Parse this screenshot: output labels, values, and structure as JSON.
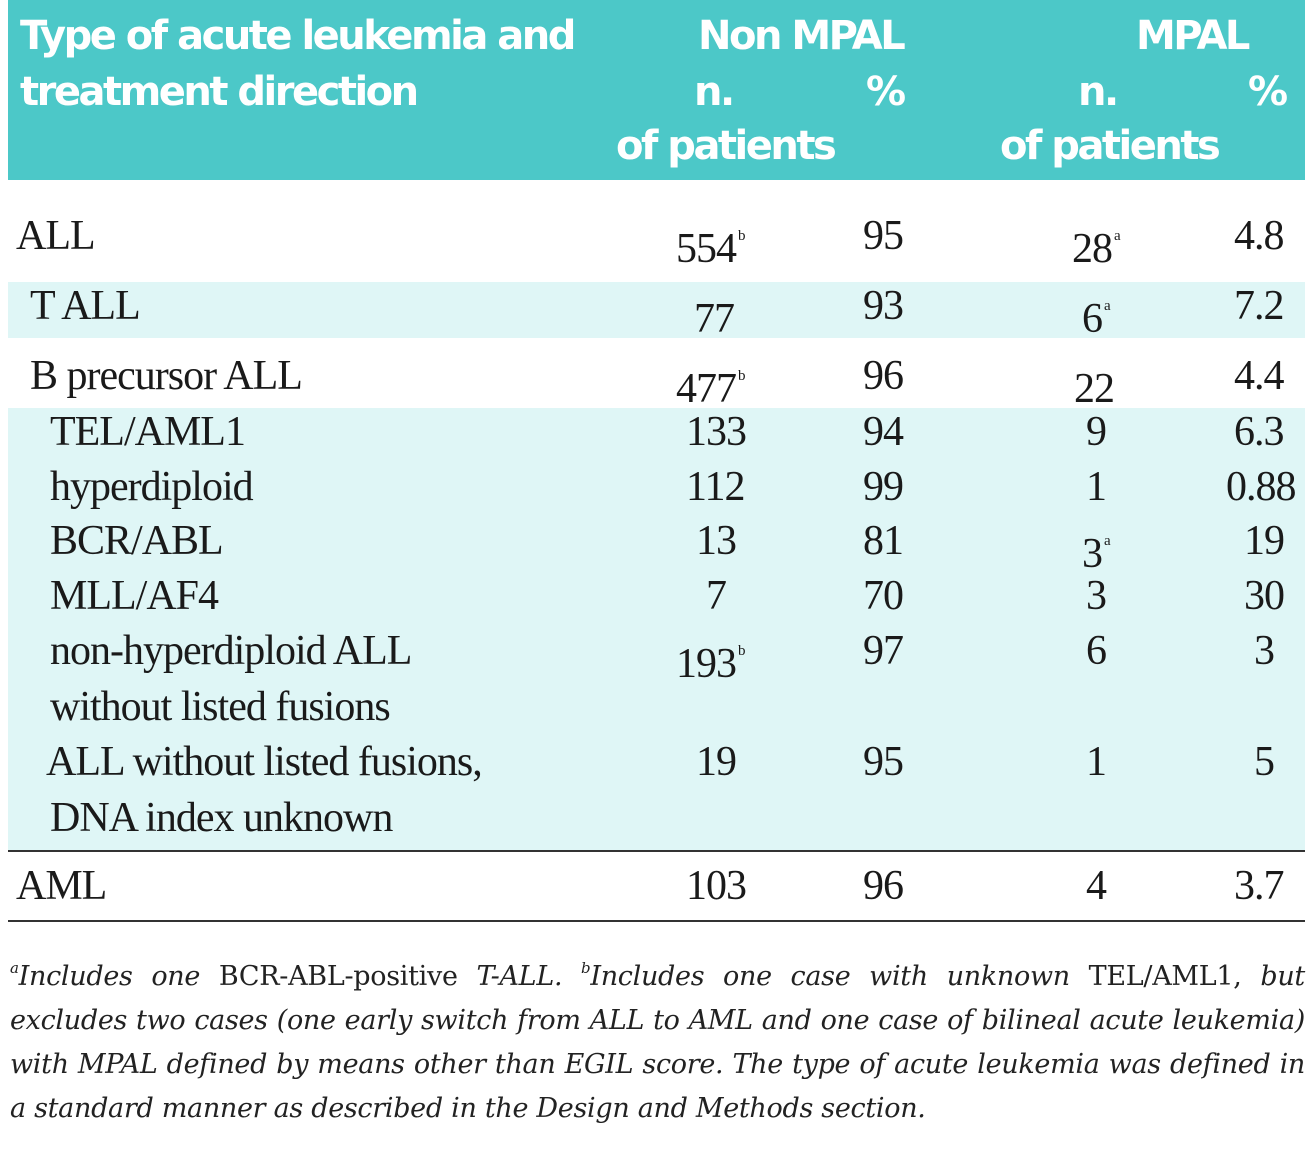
{
  "header": {
    "col_type_line1": "Type of acute leukemia and",
    "col_type_line2": "treatment direction",
    "group_non_mpal": "Non MPAL",
    "group_mpal": "MPAL",
    "n_line1": "n.",
    "n_line2": "of patients",
    "pct": "%"
  },
  "rows": [
    {
      "label": "ALL",
      "non_n": "554",
      "non_n_sup": "b",
      "non_pct": "95",
      "mpal_n": "28",
      "mpal_n_sup": "a",
      "mpal_pct": "4.8"
    },
    {
      "label": "T ALL",
      "non_n": "77",
      "non_n_sup": "",
      "non_pct": "93",
      "mpal_n": "6",
      "mpal_n_sup": "a",
      "mpal_pct": "7.2"
    },
    {
      "label": "B precursor ALL",
      "non_n": "477",
      "non_n_sup": "b",
      "non_pct": "96",
      "mpal_n": "22",
      "mpal_n_sup": "",
      "mpal_pct": "4.4"
    },
    {
      "label": "TEL/AML1",
      "non_n": "133",
      "non_n_sup": "",
      "non_pct": "94",
      "mpal_n": "9",
      "mpal_n_sup": "",
      "mpal_pct": "6.3"
    },
    {
      "label": "hyperdiploid",
      "non_n": "112",
      "non_n_sup": "",
      "non_pct": "99",
      "mpal_n": "1",
      "mpal_n_sup": "",
      "mpal_pct": "0.88"
    },
    {
      "label": "BCR/ABL",
      "non_n": "13",
      "non_n_sup": "",
      "non_pct": "81",
      "mpal_n": "3",
      "mpal_n_sup": "a",
      "mpal_pct": "19"
    },
    {
      "label": "MLL/AF4",
      "non_n": "7",
      "non_n_sup": "",
      "non_pct": "70",
      "mpal_n": "3",
      "mpal_n_sup": "",
      "mpal_pct": "30"
    },
    {
      "label": "non-hyperdiploid ALL",
      "label2": "without listed fusions",
      "non_n": "193",
      "non_n_sup": "b",
      "non_pct": "97",
      "mpal_n": "6",
      "mpal_n_sup": "",
      "mpal_pct": "3"
    },
    {
      "label": "ALL without listed fusions,",
      "label2": "DNA index unknown",
      "non_n": "19",
      "non_n_sup": "",
      "non_pct": "95",
      "mpal_n": "1",
      "mpal_n_sup": "",
      "mpal_pct": "5"
    },
    {
      "label": "AML",
      "non_n": "103",
      "non_n_sup": "",
      "non_pct": "96",
      "mpal_n": "4",
      "mpal_n_sup": "",
      "mpal_pct": "3.7"
    }
  ],
  "footnote": {
    "a_mark": "a",
    "a_pre": "Includes one",
    "a_term": "BCR-ABL-positive",
    "a_post": "T-ALL.",
    "b_mark": "b",
    "b_pre": "Includes one case with unknown",
    "b_term": "TEL/AML1,",
    "b_post": "but excludes two cases (one early switch from ALL to AML and one case of bilineal acute leukemia) with MPAL defined by means other than EGIL score. The type of acute leukemia was defined in a standard manner as described in the Design and Methods section."
  }
}
